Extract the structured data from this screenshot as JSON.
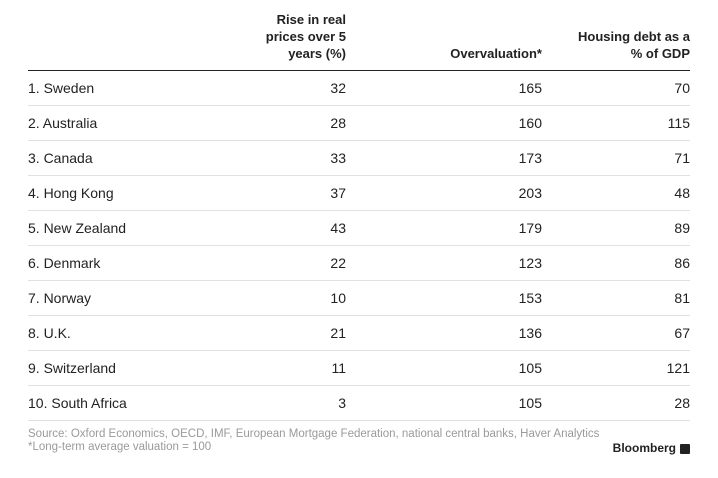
{
  "chart_data": {
    "type": "table",
    "columns": [
      "",
      "Rise in real\nprices over 5\nyears (%)",
      "Overvaluation*",
      "Housing debt as a\n% of GDP"
    ],
    "rows": [
      {
        "country": "1. Sweden",
        "rise": "32",
        "overvaluation": "165",
        "debt": "70"
      },
      {
        "country": "2. Australia",
        "rise": "28",
        "overvaluation": "160",
        "debt": "115"
      },
      {
        "country": "3. Canada",
        "rise": "33",
        "overvaluation": "173",
        "debt": "71"
      },
      {
        "country": "4. Hong Kong",
        "rise": "37",
        "overvaluation": "203",
        "debt": "48"
      },
      {
        "country": "5. New Zealand",
        "rise": "43",
        "overvaluation": "179",
        "debt": "89"
      },
      {
        "country": "6. Denmark",
        "rise": "22",
        "overvaluation": "123",
        "debt": "86"
      },
      {
        "country": "7. Norway",
        "rise": "10",
        "overvaluation": "153",
        "debt": "81"
      },
      {
        "country": "8. U.K.",
        "rise": "21",
        "overvaluation": "136",
        "debt": "67"
      },
      {
        "country": "9. Switzerland",
        "rise": "11",
        "overvaluation": "105",
        "debt": "121"
      },
      {
        "country": "10. South Africa",
        "rise": "3",
        "overvaluation": "105",
        "debt": "28"
      }
    ]
  },
  "footer": {
    "source": "Source: Oxford Economics, OECD, IMF, European Mortgage Federation, national central banks, Haver Analytics",
    "footnote": "*Long-term average valuation = 100",
    "brand": "Bloomberg"
  },
  "colors": {
    "text": "#222222",
    "muted": "#9a9a9a",
    "rule": "#e1e1e1"
  }
}
